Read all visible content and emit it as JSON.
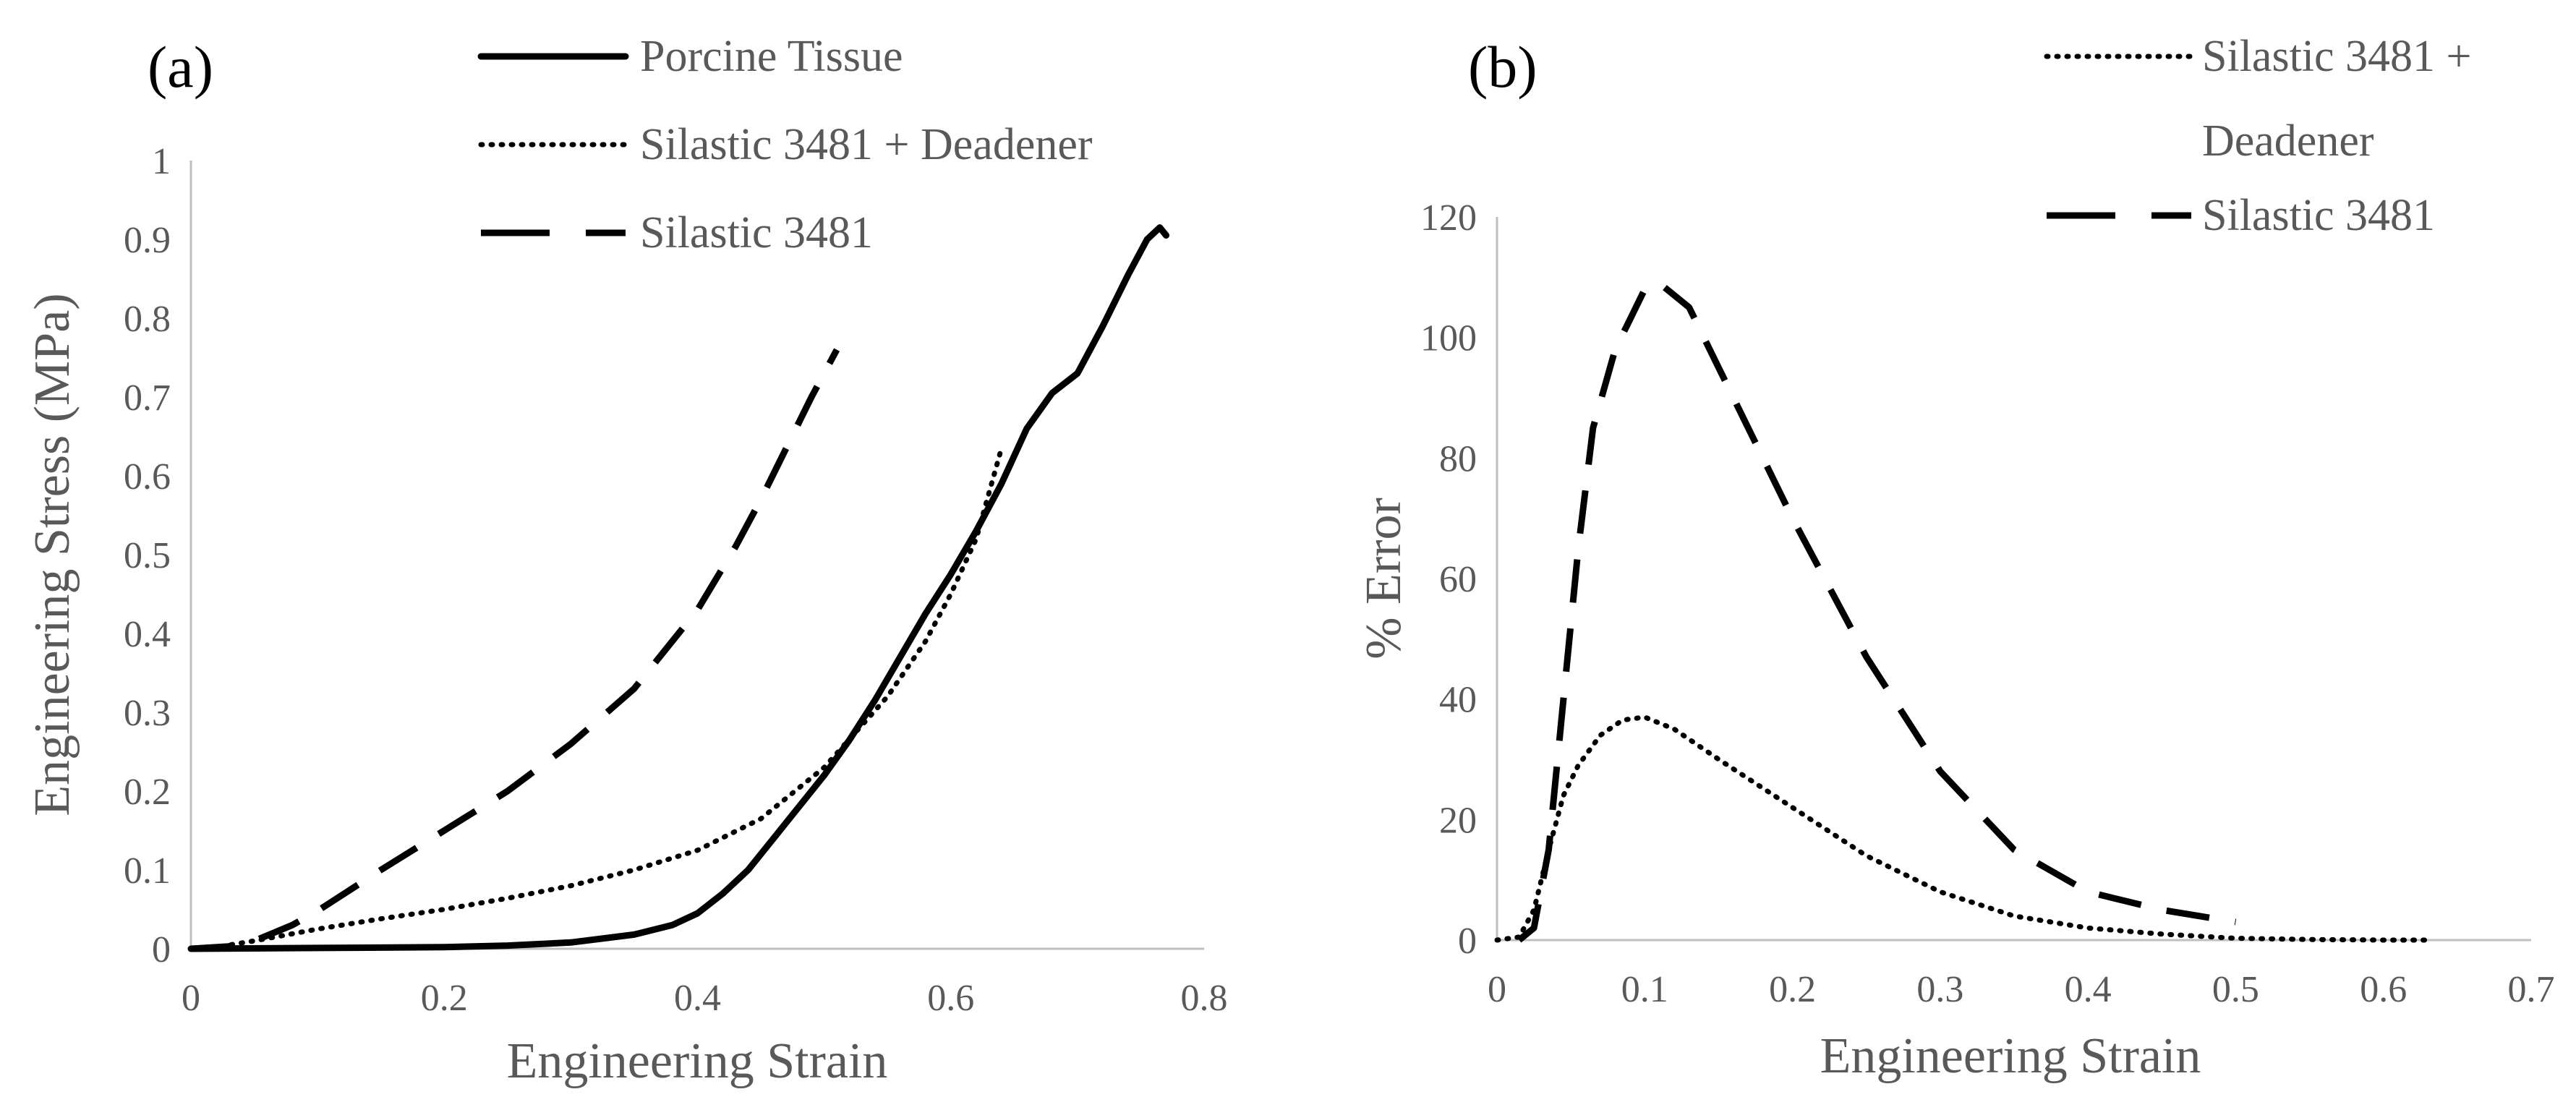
{
  "chart_data": [
    {
      "panel": "(a)",
      "type": "line",
      "title": "",
      "xlabel": "Engineering Strain",
      "ylabel": "Engineering Stress (MPa)",
      "xlim": [
        0,
        0.8
      ],
      "ylim": [
        0,
        1
      ],
      "xticks": [
        "0",
        "0.2",
        "0.4",
        "0.6",
        "0.8"
      ],
      "xtick_values": [
        0,
        0.2,
        0.4,
        0.6,
        0.8
      ],
      "yticks": [
        "0",
        "0.1",
        "0.2",
        "0.3",
        "0.4",
        "0.5",
        "0.6",
        "0.7",
        "0.8",
        "0.9",
        "1"
      ],
      "ytick_values": [
        0,
        0.1,
        0.2,
        0.3,
        0.4,
        0.5,
        0.6,
        0.7,
        0.8,
        0.9,
        1
      ],
      "grid": false,
      "legend_position": "top",
      "series": [
        {
          "name": "Porcine Tissue",
          "style": "solid",
          "x": [
            0,
            0.1,
            0.2,
            0.25,
            0.3,
            0.35,
            0.38,
            0.4,
            0.42,
            0.44,
            0.46,
            0.48,
            0.5,
            0.52,
            0.54,
            0.56,
            0.58,
            0.6,
            0.62,
            0.64,
            0.66,
            0.68,
            0.7,
            0.72,
            0.74,
            0.755,
            0.765,
            0.77
          ],
          "y": [
            0,
            0.001,
            0.002,
            0.004,
            0.008,
            0.018,
            0.03,
            0.045,
            0.07,
            0.1,
            0.14,
            0.18,
            0.22,
            0.265,
            0.315,
            0.37,
            0.425,
            0.475,
            0.53,
            0.59,
            0.66,
            0.705,
            0.73,
            0.79,
            0.855,
            0.9,
            0.915,
            0.905
          ]
        },
        {
          "name": "Silastic 3481 + Deadener",
          "style": "dotted",
          "x": [
            0,
            0.02,
            0.05,
            0.1,
            0.15,
            0.2,
            0.25,
            0.3,
            0.35,
            0.4,
            0.45,
            0.5,
            0.55,
            0.58,
            0.6,
            0.62,
            0.64
          ],
          "y": [
            0,
            0.002,
            0.01,
            0.025,
            0.038,
            0.05,
            0.064,
            0.08,
            0.1,
            0.125,
            0.165,
            0.23,
            0.32,
            0.39,
            0.45,
            0.52,
            0.635
          ]
        },
        {
          "name": "Silastic 3481",
          "style": "dashed",
          "x": [
            0,
            0.03,
            0.05,
            0.08,
            0.1,
            0.15,
            0.2,
            0.25,
            0.3,
            0.35,
            0.4,
            0.43,
            0.45,
            0.47,
            0.49,
            0.51
          ],
          "y": [
            0,
            0.003,
            0.01,
            0.03,
            0.048,
            0.1,
            0.15,
            0.2,
            0.26,
            0.33,
            0.43,
            0.51,
            0.57,
            0.635,
            0.7,
            0.76
          ]
        }
      ]
    },
    {
      "panel": "(b)",
      "type": "line",
      "title": "",
      "xlabel": "Engineering Strain",
      "ylabel": "% Error",
      "xlim": [
        0,
        0.7
      ],
      "ylim": [
        0,
        120
      ],
      "xticks": [
        "0",
        "0.1",
        "0.2",
        "0.3",
        "0.4",
        "0.5",
        "0.6",
        "0.7"
      ],
      "xtick_values": [
        0,
        0.1,
        0.2,
        0.3,
        0.4,
        0.5,
        0.6,
        0.7
      ],
      "yticks": [
        "0",
        "20",
        "40",
        "60",
        "80",
        "100",
        "120"
      ],
      "ytick_values": [
        0,
        20,
        40,
        60,
        80,
        100,
        120
      ],
      "grid": false,
      "legend_position": "top-right",
      "series": [
        {
          "name": "Silastic 3481 + Deadener",
          "style": "dotted",
          "x": [
            0,
            0.015,
            0.025,
            0.035,
            0.045,
            0.055,
            0.07,
            0.085,
            0.1,
            0.12,
            0.15,
            0.2,
            0.25,
            0.3,
            0.35,
            0.4,
            0.45,
            0.5,
            0.55,
            0.6,
            0.63
          ],
          "y": [
            0,
            0.5,
            5,
            15,
            24,
            29,
            34,
            36.5,
            37,
            35,
            30,
            22,
            14,
            8,
            4,
            2,
            1,
            0.3,
            0.1,
            0,
            0
          ]
        },
        {
          "name": "Silastic 3481",
          "style": "dashed",
          "x": [
            0.015,
            0.025,
            0.035,
            0.045,
            0.055,
            0.065,
            0.08,
            0.09,
            0.1,
            0.11,
            0.13,
            0.15,
            0.2,
            0.25,
            0.3,
            0.35,
            0.4,
            0.45,
            0.5
          ],
          "y": [
            0,
            2,
            15,
            40,
            65,
            85,
            98,
            103,
            108,
            109,
            105,
            95,
            70,
            47,
            28,
            15,
            8,
            5,
            3
          ]
        }
      ]
    }
  ]
}
